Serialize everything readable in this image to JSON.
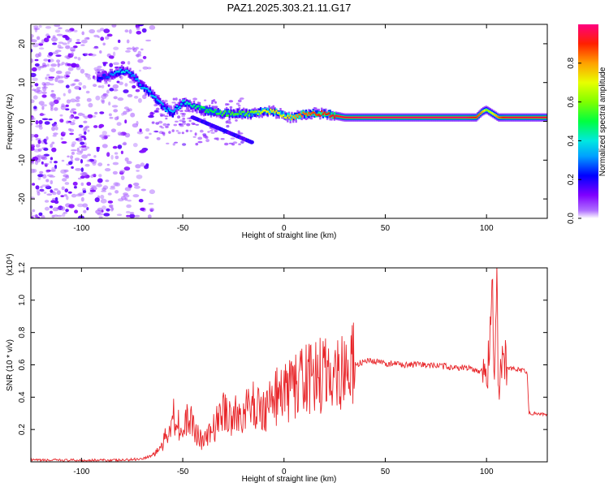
{
  "figure": {
    "title": "PAZ1.2025.303.21.11.G17"
  },
  "chart_data": [
    {
      "type": "heatmap",
      "panel": "spectrogram",
      "xlabel": "Height of straight line (km)",
      "ylabel": "Frequency (Hz)",
      "xlim": [
        -125,
        130
      ],
      "ylim": [
        -25,
        25
      ],
      "xticks": [
        -100,
        -50,
        0,
        50,
        100
      ],
      "yticks": [
        -20,
        -10,
        0,
        10,
        20
      ],
      "colorbar": {
        "label": "Normalized spectral amplitude",
        "range": [
          0,
          1
        ],
        "ticks": [
          0.0,
          0.2,
          0.4,
          0.6,
          0.8
        ],
        "tick_labels": [
          "0.0",
          "0.2",
          "0.4",
          "0.6",
          "0.8"
        ],
        "colormap": [
          "#ffffff",
          "#7f00ff",
          "#0000ff",
          "#00bfff",
          "#00ffc0",
          "#40ff00",
          "#c0ff00",
          "#ffff00",
          "#ff8000",
          "#ff0000",
          "#ff0080"
        ]
      },
      "ridge": {
        "x": [
          -92,
          -85,
          -80,
          -75,
          -70,
          -65,
          -60,
          -55,
          -50,
          -45,
          -40,
          -35,
          -30,
          -25,
          -20,
          -15,
          -10,
          -5,
          0,
          5,
          10,
          20,
          30,
          40,
          50,
          60,
          70,
          80,
          90,
          95,
          98,
          100,
          103,
          106,
          110,
          120,
          130
        ],
        "freq": [
          11,
          12,
          13,
          12,
          9,
          7,
          4,
          2,
          5,
          4,
          3,
          2.5,
          2,
          2,
          2,
          2,
          2.5,
          2.5,
          1.5,
          1,
          2,
          2,
          1,
          1,
          1,
          1,
          1,
          1,
          1,
          1,
          2.5,
          3,
          2,
          1,
          1,
          1,
          1
        ],
        "amplitude": [
          0.2,
          0.3,
          0.4,
          0.3,
          0.35,
          0.35,
          0.35,
          0.35,
          0.4,
          0.45,
          0.5,
          0.5,
          0.55,
          0.55,
          0.55,
          0.6,
          0.7,
          0.75,
          0.7,
          0.8,
          0.85,
          0.9,
          0.95,
          0.98,
          0.98,
          0.98,
          0.98,
          0.98,
          0.98,
          0.9,
          0.8,
          0.6,
          0.7,
          0.85,
          0.95,
          0.95,
          0.95
        ]
      },
      "noise_region_x": [
        -125,
        -65
      ]
    },
    {
      "type": "line",
      "panel": "snr",
      "xlabel": "Height of straight line (km)",
      "ylabel": "SNR (10 * v/v)",
      "y_multiplier": "(x10⁴)",
      "xlim": [
        -125,
        130
      ],
      "ylim": [
        0,
        1.2
      ],
      "xticks": [
        -100,
        -50,
        0,
        50,
        100
      ],
      "yticks": [
        0.2,
        0.4,
        0.6,
        0.8,
        1.0,
        1.2
      ],
      "series": [
        {
          "color": "#e8262a",
          "x": [
            -125,
            -100,
            -80,
            -70,
            -65,
            -60,
            -57,
            -55,
            -52,
            -50,
            -47,
            -45,
            -40,
            -35,
            -30,
            -25,
            -20,
            -15,
            -10,
            -5,
            0,
            5,
            10,
            15,
            20,
            25,
            30,
            35,
            40,
            45,
            50,
            60,
            70,
            80,
            90,
            98,
            100,
            102,
            103,
            104,
            105,
            106,
            108,
            110,
            115,
            120,
            121,
            125,
            130
          ],
          "y": [
            0.01,
            0.01,
            0.01,
            0.02,
            0.04,
            0.1,
            0.2,
            0.3,
            0.25,
            0.15,
            0.3,
            0.22,
            0.12,
            0.2,
            0.32,
            0.28,
            0.3,
            0.35,
            0.32,
            0.4,
            0.42,
            0.46,
            0.5,
            0.52,
            0.54,
            0.56,
            0.58,
            0.6,
            0.62,
            0.62,
            0.61,
            0.6,
            0.6,
            0.59,
            0.58,
            0.56,
            0.5,
            0.8,
            1.1,
            0.4,
            1.2,
            0.35,
            0.7,
            0.58,
            0.57,
            0.56,
            0.3,
            0.3,
            0.29
          ]
        }
      ]
    }
  ]
}
